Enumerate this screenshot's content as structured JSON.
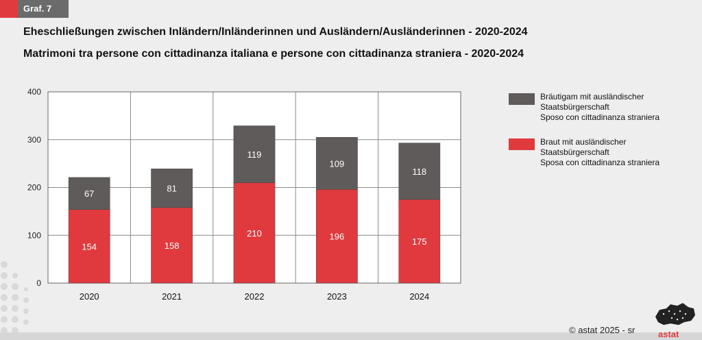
{
  "header": {
    "graf_label": "Graf. 7"
  },
  "titles": {
    "de": "Eheschließungen zwischen Inländern/Inländerinnen und Ausländern/Ausländerinnen - 2020-2024",
    "it": "Matrimoni tra persone con cittadinanza italiana e persone con cittadinanza straniera - 2020-2024"
  },
  "legend": {
    "groom": {
      "line1": "Bräutigam mit ausländischer",
      "line2": "Staatsbürgerschaft",
      "line3": "Sposo con cittadinanza straniera"
    },
    "bride": {
      "line1": "Braut mit ausländischer",
      "line2": "Staatsbürgerschaft",
      "line3": "Sposa con cittadinanza straniera"
    }
  },
  "footer": {
    "copyright": "© astat 2025 - sr",
    "logo": "astat"
  },
  "colors": {
    "groom": "#5f5b5a",
    "bride": "#e03a3e",
    "accent": "#e03a3e",
    "grid": "#888888"
  },
  "chart_data": {
    "type": "bar",
    "stacked": true,
    "categories": [
      "2020",
      "2021",
      "2022",
      "2023",
      "2024"
    ],
    "series": [
      {
        "name": "Braut mit ausländischer Staatsbürgerschaft / Sposa con cittadinanza straniera",
        "values": [
          154,
          158,
          210,
          196,
          175
        ]
      },
      {
        "name": "Bräutigam mit ausländischer Staatsbürgerschaft / Sposo con cittadinanza straniera",
        "values": [
          67,
          81,
          119,
          109,
          118
        ]
      }
    ],
    "yticks": [
      "0",
      "100",
      "200",
      "300",
      "400"
    ],
    "ylim": [
      0,
      400
    ],
    "grid": true,
    "legend": "right"
  }
}
